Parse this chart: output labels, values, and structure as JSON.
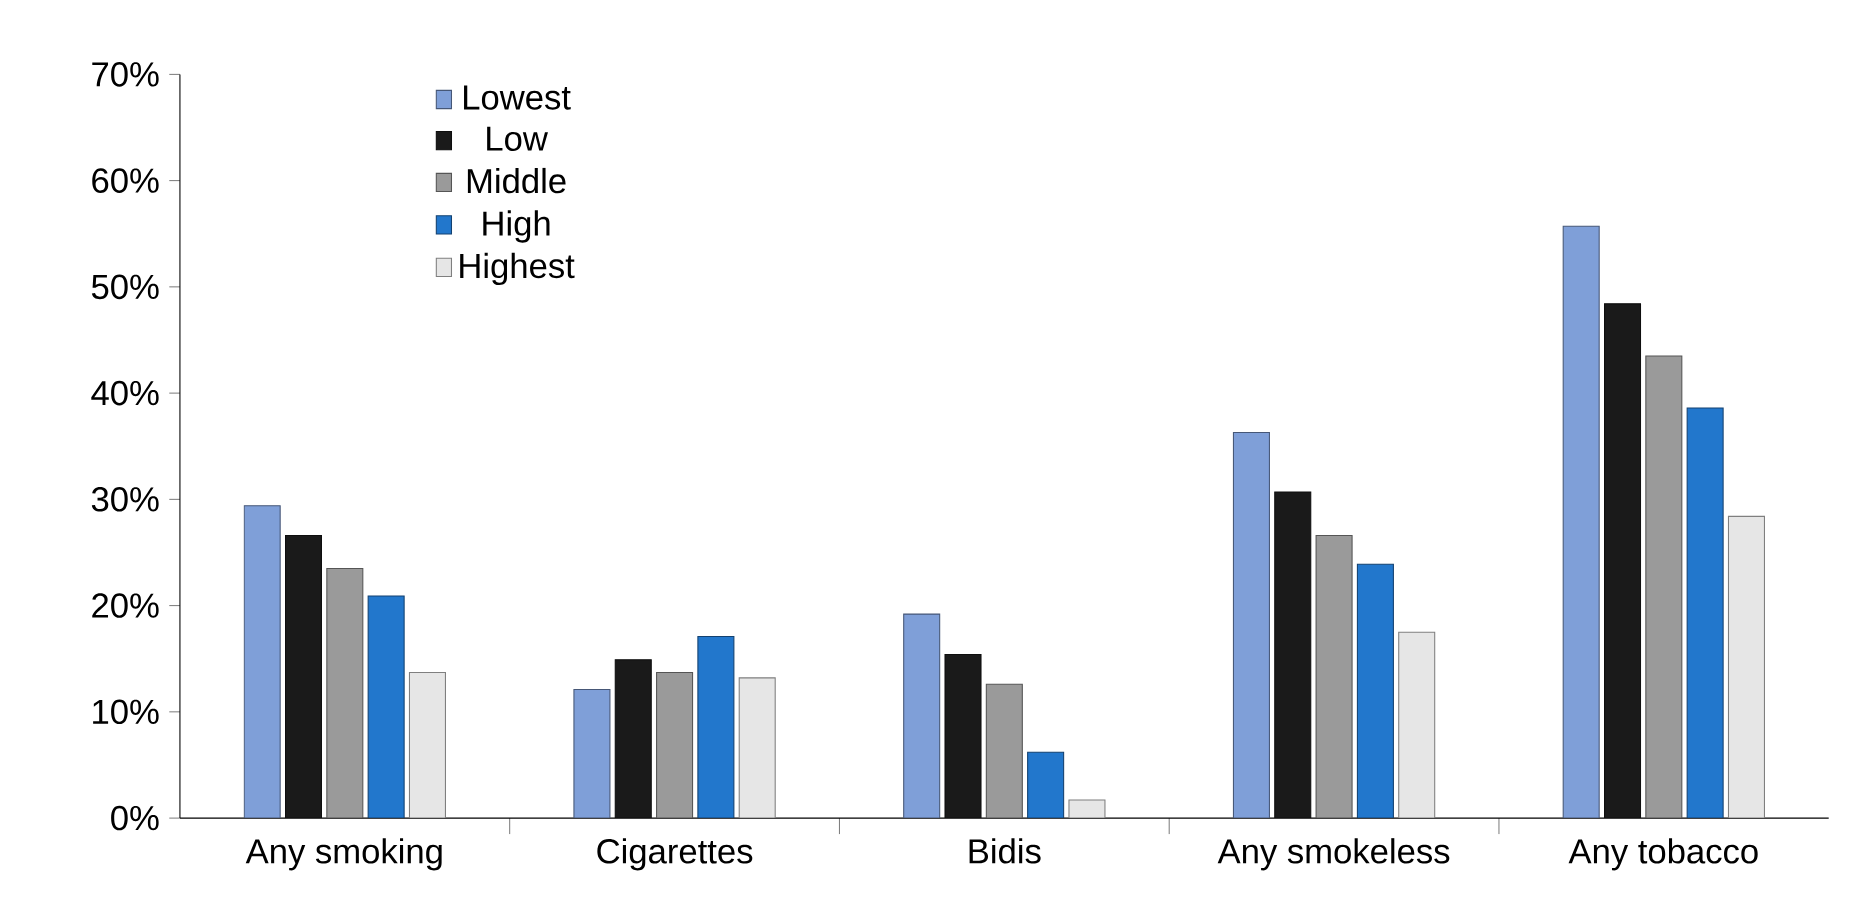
{
  "chart_data": {
    "type": "bar",
    "categories": [
      "Any smoking",
      "Cigarettes",
      "Bidis",
      "Any smokeless",
      "Any tobacco"
    ],
    "series": [
      {
        "name": "Lowest",
        "color": "#7f9fd8",
        "values": [
          29.4,
          12.1,
          19.2,
          36.3,
          55.7
        ]
      },
      {
        "name": "Low",
        "color": "#1a1a1a",
        "values": [
          26.6,
          14.9,
          15.4,
          30.7,
          48.4
        ]
      },
      {
        "name": "Middle",
        "color": "#9a9a9a",
        "values": [
          23.5,
          13.7,
          12.6,
          26.6,
          43.5
        ]
      },
      {
        "name": "High",
        "color": "#2277cc",
        "values": [
          20.9,
          17.1,
          6.2,
          23.9,
          38.6
        ]
      },
      {
        "name": "Highest",
        "color": "#e6e6e6",
        "values": [
          13.7,
          13.2,
          1.7,
          17.5,
          28.4
        ]
      }
    ],
    "ylim": [
      0,
      70
    ],
    "yticks": [
      {
        "value": 0,
        "label": "0%"
      },
      {
        "value": 10,
        "label": "10%"
      },
      {
        "value": 20,
        "label": "20%"
      },
      {
        "value": 30,
        "label": "30%"
      },
      {
        "value": 40,
        "label": "40%"
      },
      {
        "value": 50,
        "label": "50%"
      },
      {
        "value": 60,
        "label": "60%"
      },
      {
        "value": 70,
        "label": "70%"
      }
    ],
    "legend": "top left",
    "grid": false
  }
}
